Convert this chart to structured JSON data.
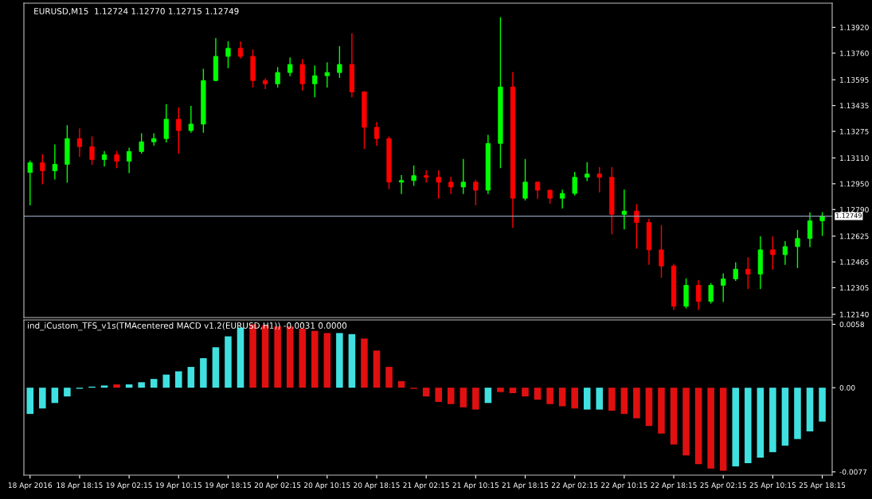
{
  "chart_data": [
    {
      "type": "candlestick",
      "title": "EURUSD,M15  1.12724 1.12770 1.12715 1.12749",
      "categories": [
        null,
        null,
        null,
        null,
        null,
        null,
        null,
        null,
        null,
        null,
        null,
        null,
        null,
        null,
        null,
        null,
        null,
        null,
        null,
        null,
        null,
        null,
        null,
        null,
        null,
        null,
        null,
        null,
        null,
        null,
        null,
        null,
        null,
        null,
        null,
        null,
        null,
        null,
        null,
        null,
        null,
        null,
        null,
        null,
        null,
        null,
        null,
        null,
        null,
        null,
        null,
        null,
        null,
        null,
        null,
        null,
        null,
        null,
        null,
        null,
        null,
        null,
        null,
        null,
        null
      ],
      "ohlc": [
        [
          1.1302,
          1.1309,
          1.1282,
          1.1308
        ],
        [
          1.1308,
          1.1313,
          1.1295,
          1.1303
        ],
        [
          1.1303,
          1.1319,
          1.1298,
          1.1307
        ],
        [
          1.1307,
          1.1331,
          1.1296,
          1.1323
        ],
        [
          1.1323,
          1.1329,
          1.1312,
          1.1318
        ],
        [
          1.1318,
          1.1324,
          1.1307,
          1.131
        ],
        [
          1.131,
          1.1315,
          1.1306,
          1.1313
        ],
        [
          1.1313,
          1.1315,
          1.1305,
          1.1309
        ],
        [
          1.1309,
          1.1317,
          1.1302,
          1.1315
        ],
        [
          1.1315,
          1.1326,
          1.1314,
          1.1321
        ],
        [
          1.1321,
          1.1326,
          1.1319,
          1.1323
        ],
        [
          1.1323,
          1.1344,
          1.1321,
          1.1335
        ],
        [
          1.1335,
          1.1342,
          1.1314,
          1.1328
        ],
        [
          1.1328,
          1.1343,
          1.1327,
          1.1332
        ],
        [
          1.1332,
          1.1366,
          1.1327,
          1.1359
        ],
        [
          1.1359,
          1.1385,
          1.1359,
          1.1374
        ],
        [
          1.1374,
          1.1383,
          1.1367,
          1.1379
        ],
        [
          1.1379,
          1.1383,
          1.1373,
          1.1374
        ],
        [
          1.1374,
          1.1378,
          1.1355,
          1.1359
        ],
        [
          1.1359,
          1.136,
          1.1354,
          1.1357
        ],
        [
          1.1357,
          1.1367,
          1.1355,
          1.1364
        ],
        [
          1.1364,
          1.1373,
          1.1362,
          1.1369
        ],
        [
          1.1369,
          1.1372,
          1.1353,
          1.1357
        ],
        [
          1.1357,
          1.1368,
          1.1349,
          1.1362
        ],
        [
          1.1362,
          1.137,
          1.1355,
          1.1364
        ],
        [
          1.1364,
          1.138,
          1.1361,
          1.1369
        ],
        [
          1.1369,
          1.1388,
          1.1349,
          1.1352
        ],
        [
          1.1352,
          1.1352,
          1.1317,
          1.133
        ],
        [
          1.133,
          1.1333,
          1.1319,
          1.1323
        ],
        [
          1.1323,
          1.1324,
          1.1292,
          1.1296
        ],
        [
          1.1296,
          1.13,
          1.1289,
          1.1297
        ],
        [
          1.1297,
          1.1306,
          1.1294,
          1.13
        ],
        [
          1.13,
          1.1303,
          1.1296,
          1.1299
        ],
        [
          1.1299,
          1.1303,
          1.1286,
          1.1296
        ],
        [
          1.1296,
          1.1299,
          1.1289,
          1.1293
        ],
        [
          1.1293,
          1.131,
          1.1289,
          1.1296
        ],
        [
          1.1296,
          1.1297,
          1.1282,
          1.1291
        ],
        [
          1.1291,
          1.1325,
          1.1289,
          1.132
        ],
        [
          1.132,
          1.1398,
          1.1305,
          1.1355
        ],
        [
          1.1355,
          1.1364,
          1.1268,
          1.1286
        ],
        [
          1.1286,
          1.131,
          1.1285,
          1.1296
        ],
        [
          1.1296,
          1.1296,
          1.1286,
          1.1291
        ],
        [
          1.1291,
          1.1291,
          1.1283,
          1.1286
        ],
        [
          1.1286,
          1.1291,
          1.128,
          1.1289
        ],
        [
          1.1289,
          1.1302,
          1.1288,
          1.1299
        ],
        [
          1.1299,
          1.1308,
          1.1297,
          1.1301
        ],
        [
          1.1301,
          1.1305,
          1.129,
          1.1299
        ],
        [
          1.1299,
          1.1305,
          1.1264,
          1.1276
        ],
        [
          1.1276,
          1.1291,
          1.1267,
          1.1278
        ],
        [
          1.1278,
          1.1282,
          1.1255,
          1.1271
        ],
        [
          1.1271,
          1.1273,
          1.1245,
          1.1254
        ],
        [
          1.1254,
          1.1269,
          1.1237,
          1.1244
        ],
        [
          1.1244,
          1.1245,
          1.1217,
          1.1219
        ],
        [
          1.1219,
          1.1236,
          1.1218,
          1.1232
        ],
        [
          1.1232,
          1.1235,
          1.1217,
          1.1222
        ],
        [
          1.1222,
          1.1233,
          1.1221,
          1.1232
        ],
        [
          1.1232,
          1.1239,
          1.1222,
          1.1236
        ],
        [
          1.1236,
          1.1246,
          1.1235,
          1.1242
        ],
        [
          1.1242,
          1.1249,
          1.123,
          1.1239
        ],
        [
          1.1239,
          1.1262,
          1.123,
          1.1254
        ],
        [
          1.1254,
          1.1262,
          1.1242,
          1.1251
        ],
        [
          1.1251,
          1.1259,
          1.1245,
          1.1256
        ],
        [
          1.1256,
          1.1266,
          1.1243,
          1.1261
        ],
        [
          1.1261,
          1.1277,
          1.1256,
          1.1272
        ],
        [
          1.1272,
          1.1277,
          1.1263,
          1.1275
        ]
      ],
      "colors": [
        "#00ff00",
        "#ff0000",
        "#00ff00",
        "#00ff00",
        "#ff0000",
        "#ff0000",
        "#00ff00",
        "#ff0000",
        "#00ff00",
        "#00ff00",
        "#00ff00",
        "#00ff00",
        "#ff0000",
        "#00ff00",
        "#00ff00",
        "#00ff00",
        "#00ff00",
        "#ff0000",
        "#ff0000",
        "#ff0000",
        "#00ff00",
        "#00ff00",
        "#ff0000",
        "#00ff00",
        "#00ff00",
        "#00ff00",
        "#ff0000",
        "#ff0000",
        "#ff0000",
        "#ff0000",
        "#00ff00",
        "#00ff00",
        "#ff0000",
        "#ff0000",
        "#ff0000",
        "#00ff00",
        "#ff0000",
        "#00ff00",
        "#00ff00",
        "#ff0000",
        "#00ff00",
        "#ff0000",
        "#ff0000",
        "#00ff00",
        "#00ff00",
        "#00ff00",
        "#ff0000",
        "#ff0000",
        "#00ff00",
        "#ff0000",
        "#ff0000",
        "#ff0000",
        "#ff0000",
        "#00ff00",
        "#ff0000",
        "#00ff00",
        "#00ff00",
        "#00ff00",
        "#ff0000",
        "#00ff00",
        "#ff0000",
        "#00ff00",
        "#00ff00",
        "#00ff00",
        "#00ff00"
      ],
      "ylim": [
        1.1212,
        1.1407
      ],
      "yticks": [
        {
          "value": 1.1392,
          "label": "1.13920"
        },
        {
          "value": 1.1376,
          "label": "1.13760"
        },
        1.13595,
        1.13435,
        1.13275,
        {
          "value": 1.1311,
          "label": "1.13110"
        },
        {
          "value": 1.1295,
          "label": "1.12950"
        },
        {
          "value": 1.1279,
          "label": "1.12790"
        },
        1.12625,
        1.12465,
        1.12305,
        {
          "value": 1.1214,
          "label": "1.12140"
        }
      ],
      "ref_lines": [
        {
          "axis": "y",
          "value": 1.12749,
          "label": "1.12749",
          "color": "#8a9bb0"
        }
      ],
      "tick_labels": "y",
      "grid": false,
      "legend": false
    },
    {
      "type": "bar",
      "title": "ind_iCustom_TFS_v1s(TMAcentered MACD v1.2(EURUSD,H1)) -0.0031 0.0000",
      "categories": [
        "18 Apr 2016",
        null,
        null,
        null,
        "18 Apr 18:15",
        null,
        null,
        null,
        "19 Apr 02:15",
        null,
        null,
        null,
        "19 Apr 10:15",
        null,
        null,
        null,
        "19 Apr 18:15",
        null,
        null,
        null,
        "20 Apr 02:15",
        null,
        null,
        null,
        "20 Apr 10:15",
        null,
        null,
        null,
        "20 Apr 18:15",
        null,
        null,
        null,
        "21 Apr 02:15",
        null,
        null,
        null,
        "21 Apr 10:15",
        null,
        null,
        null,
        "21 Apr 18:15",
        null,
        null,
        null,
        "22 Apr 02:15",
        null,
        null,
        null,
        "22 Apr 10:15",
        null,
        null,
        null,
        "22 Apr 18:15",
        null,
        null,
        null,
        "25 Apr 02:15",
        null,
        null,
        null,
        "25 Apr 10:15",
        null,
        null,
        null,
        "25 Apr 18:15"
      ],
      "values": [
        -0.0024,
        -0.0019,
        -0.0014,
        -0.0008,
        -0.0001,
        0.0001,
        0.0002,
        0.0003,
        0.0003,
        0.0005,
        0.0008,
        0.0012,
        0.0015,
        0.0019,
        0.0027,
        0.0037,
        0.0047,
        0.0055,
        0.0058,
        0.0057,
        0.0056,
        0.0056,
        0.0054,
        0.0052,
        0.005,
        0.005,
        0.0049,
        0.0045,
        0.0034,
        0.0019,
        0.0006,
        -0.0001,
        -0.0008,
        -0.0013,
        -0.0015,
        -0.0018,
        -0.002,
        -0.0014,
        -0.0004,
        -0.0005,
        -0.0008,
        -0.0011,
        -0.0015,
        -0.0017,
        -0.0019,
        -0.002,
        -0.002,
        -0.0021,
        -0.0024,
        -0.0028,
        -0.0035,
        -0.0042,
        -0.0052,
        -0.0062,
        -0.007,
        -0.0074,
        -0.0076,
        -0.0072,
        -0.0069,
        -0.0064,
        -0.0059,
        -0.0053,
        -0.0047,
        -0.004,
        -0.0031
      ],
      "colors": [
        "#40e0e0",
        "#40e0e0",
        "#40e0e0",
        "#40e0e0",
        "#40e0e0",
        "#40e0e0",
        "#40e0e0",
        "#e01010",
        "#40e0e0",
        "#40e0e0",
        "#40e0e0",
        "#40e0e0",
        "#40e0e0",
        "#40e0e0",
        "#40e0e0",
        "#40e0e0",
        "#40e0e0",
        "#40e0e0",
        "#e01010",
        "#e01010",
        "#e01010",
        "#e01010",
        "#e01010",
        "#e01010",
        "#e01010",
        "#40e0e0",
        "#40e0e0",
        "#e01010",
        "#e01010",
        "#e01010",
        "#e01010",
        "#e01010",
        "#e01010",
        "#e01010",
        "#e01010",
        "#e01010",
        "#e01010",
        "#40e0e0",
        "#e01010",
        "#e01010",
        "#e01010",
        "#e01010",
        "#e01010",
        "#e01010",
        "#e01010",
        "#40e0e0",
        "#40e0e0",
        "#e01010",
        "#e01010",
        "#e01010",
        "#e01010",
        "#e01010",
        "#e01010",
        "#e01010",
        "#e01010",
        "#e01010",
        "#e01010",
        "#40e0e0",
        "#40e0e0",
        "#40e0e0",
        "#40e0e0",
        "#40e0e0",
        "#40e0e0",
        "#40e0e0",
        "#40e0e0"
      ],
      "ylim": [
        -0.008,
        0.0062
      ],
      "yticks": [
        0.0058,
        {
          "value": 0,
          "label": "0.00"
        },
        -0.0077
      ],
      "grid": false,
      "legend": false
    }
  ]
}
